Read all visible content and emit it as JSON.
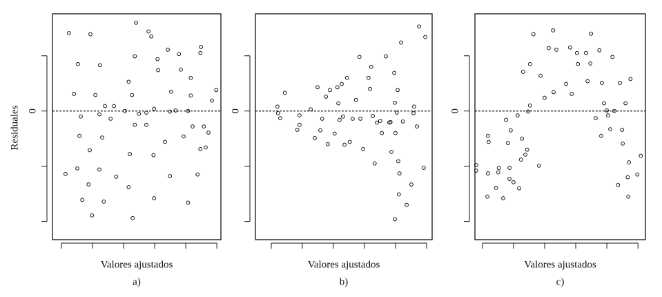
{
  "chart_data": [
    {
      "type": "scatter",
      "y_label": "Residuales",
      "x_label": "Valores ajustados",
      "caption": "a)",
      "xlim": [
        -0.29,
        5.13
      ],
      "ylim": [
        -2.33,
        1.76
      ],
      "reference_line": 0,
      "xticks": [
        {
          "value": 0,
          "label": null
        },
        {
          "value": 1,
          "label": null
        },
        {
          "value": 2,
          "label": null
        },
        {
          "value": 3,
          "label": null
        },
        {
          "value": 4,
          "label": null
        },
        {
          "value": 5,
          "label": null
        }
      ],
      "yticks": [
        {
          "value": -2,
          "label": null
        },
        {
          "value": -1,
          "label": null
        },
        0,
        {
          "value": 1,
          "label": null
        }
      ],
      "x": [
        0.24,
        0.93,
        2.4,
        2.8,
        2.89,
        0.53,
        1.24,
        0.4,
        1.09,
        0.62,
        0.58,
        0.91,
        0.51,
        0.13,
        1.22,
        0.87,
        0.67,
        1.36,
        0.98,
        1.76,
        1.4,
        1.69,
        1.58,
        1.31,
        2.16,
        2.36,
        2.27,
        2.04,
        2.49,
        2.73,
        2.98,
        3.09,
        3.11,
        3.42,
        3.78,
        3.84,
        3.53,
        3.67,
        4.16,
        4.16,
        4.49,
        4.47,
        4.98,
        4.84,
        4.22,
        3.93,
        3.33,
        2.96,
        3.49,
        2.98,
        2.2,
        2.16,
        2.29,
        2.36,
        2.73,
        4.07,
        4.38,
        4.47,
        4.64,
        4.73,
        4.58,
        4.07,
        3.49,
        1.22
      ],
      "values": [
        1.41,
        1.39,
        1.6,
        1.44,
        1.35,
        0.85,
        0.83,
        0.31,
        0.29,
        -0.1,
        -0.45,
        -0.71,
        -1.04,
        -1.14,
        -1.06,
        -1.33,
        -1.61,
        -1.64,
        -1.89,
        -1.19,
        0.09,
        0.09,
        -0.14,
        -0.48,
        0.53,
        0.99,
        0.29,
        0,
        -0.05,
        -0.03,
        0.04,
        0.94,
        0.74,
        1.11,
        1.03,
        0.75,
        0.35,
        0.01,
        0.6,
        0.28,
        1.16,
        1.05,
        0.38,
        0.19,
        -0.28,
        -0.46,
        -0.56,
        -0.8,
        -1.18,
        -1.58,
        -0.78,
        -1.38,
        -1.94,
        -0.25,
        -0.25,
        -1.66,
        -1.15,
        -0.69,
        -0.66,
        -0.39,
        -0.28,
        0,
        -0.01,
        -0.06
      ]
    },
    {
      "type": "scatter",
      "x_label": "Valores ajustados",
      "caption": "b)",
      "xlim": [
        -0.51,
        5.18
      ],
      "ylim": [
        -2.33,
        1.76
      ],
      "reference_line": 0,
      "xticks": [
        {
          "value": 0,
          "label": null
        },
        {
          "value": 1,
          "label": null
        },
        {
          "value": 2,
          "label": null
        },
        {
          "value": 3,
          "label": null
        },
        {
          "value": 4,
          "label": null
        },
        {
          "value": 5,
          "label": null
        }
      ],
      "yticks": [
        {
          "value": -2,
          "label": null
        },
        {
          "value": -1,
          "label": null
        },
        0,
        {
          "value": 1,
          "label": null
        }
      ],
      "x": [
        0.2,
        0.22,
        0.29,
        0.44,
        0.84,
        0.91,
        0.91,
        1.27,
        1.4,
        1.49,
        1.58,
        1.64,
        1.76,
        1.82,
        1.89,
        2.04,
        2.13,
        2.16,
        2.2,
        2.27,
        2.31,
        2.36,
        2.44,
        2.53,
        2.73,
        2.62,
        2.84,
        2.96,
        2.87,
        3.13,
        3.18,
        3.22,
        3.33,
        3.27,
        3.4,
        3.56,
        3.51,
        3.69,
        3.8,
        3.87,
        3.96,
        4,
        3.98,
        4.07,
        4.09,
        4.04,
        4.13,
        4.24,
        4.18,
        4.11,
        4.36,
        4.51,
        4.58,
        4.69,
        4.6,
        4.76,
        4.91,
        4.96,
        3.98,
        3.84
      ],
      "values": [
        0.08,
        -0.04,
        -0.13,
        0.33,
        -0.34,
        -0.25,
        -0.08,
        0.03,
        -0.49,
        0.43,
        -0.35,
        -0.14,
        0.26,
        -0.6,
        0.38,
        -0.41,
        0.43,
        0.14,
        -0.16,
        0.49,
        -0.1,
        -0.61,
        0.6,
        -0.56,
        0.2,
        -0.14,
        0.98,
        -0.69,
        -0.14,
        0.6,
        0.4,
        0.8,
        -0.95,
        -0.09,
        -0.21,
        -0.4,
        -0.18,
        0.99,
        -0.21,
        -0.74,
        0.69,
        -0.4,
        0.15,
        0.38,
        -0.91,
        -0.03,
        -1.13,
        -0.19,
        1.24,
        -1.51,
        -1.7,
        -1.33,
        -0.04,
        -0.28,
        0.08,
        1.53,
        -1.03,
        1.34,
        -1.96,
        -0.2
      ]
    },
    {
      "type": "scatter",
      "x_label": "Valores ajustados",
      "caption": "c)",
      "xlim": [
        -0.24,
        5.24
      ],
      "ylim": [
        -2.33,
        1.76
      ],
      "reference_line": 0,
      "xticks": [
        {
          "value": 0,
          "label": null
        },
        {
          "value": 1,
          "label": null
        },
        {
          "value": 2,
          "label": null
        },
        {
          "value": 3,
          "label": null
        },
        {
          "value": 4,
          "label": null
        },
        {
          "value": 5,
          "label": null
        }
      ],
      "yticks": [
        {
          "value": -2,
          "label": null
        },
        {
          "value": -1,
          "label": null
        },
        0,
        {
          "value": 1,
          "label": null
        }
      ],
      "x": [
        -0.2,
        -0.2,
        0.16,
        0.18,
        0.2,
        0.18,
        0.44,
        0.53,
        0.51,
        0.67,
        0.76,
        0.82,
        0.87,
        0.87,
        0.91,
        1,
        1.13,
        1.18,
        1.27,
        1.24,
        1.31,
        1.38,
        1.44,
        1.47,
        1.53,
        1.53,
        1.64,
        1.82,
        1.87,
        2,
        2.13,
        2.27,
        2.29,
        2.38,
        2.69,
        2.82,
        2.87,
        3.04,
        3.07,
        3.33,
        3.38,
        3.49,
        3.47,
        3.64,
        3.76,
        3.84,
        3.82,
        3.91,
        4,
        4.04,
        4.11,
        4.18,
        4.24,
        4.42,
        4.49,
        4.51,
        4.6,
        4.67,
        4.71,
        4.76,
        4.36,
        4.69,
        4.98,
        5.09
      ],
      "values": [
        -0.98,
        -1.08,
        -1.55,
        -0.45,
        -0.56,
        -1.13,
        -1.39,
        -1.03,
        -1.11,
        -1.58,
        -0.16,
        -0.58,
        -1.03,
        -1.23,
        -0.35,
        -1.29,
        -0.08,
        -1.4,
        -0.5,
        -0.88,
        0.71,
        -0.79,
        -0.7,
        -0.01,
        0.1,
        0.85,
        1.39,
        -0.99,
        0.64,
        0.24,
        1.14,
        1.46,
        0.34,
        1.11,
        0.49,
        1.15,
        0.31,
        1.05,
        0.85,
        1.05,
        0.54,
        1.4,
        0.86,
        -0.13,
        1.1,
        0.51,
        -0.45,
        0.14,
        0.01,
        -0.08,
        -0.33,
        0.98,
        0,
        0.51,
        -0.34,
        -0.59,
        0.14,
        -1.2,
        -0.93,
        0.58,
        -1.34,
        -1.55,
        -1.15,
        -0.81
      ]
    }
  ]
}
